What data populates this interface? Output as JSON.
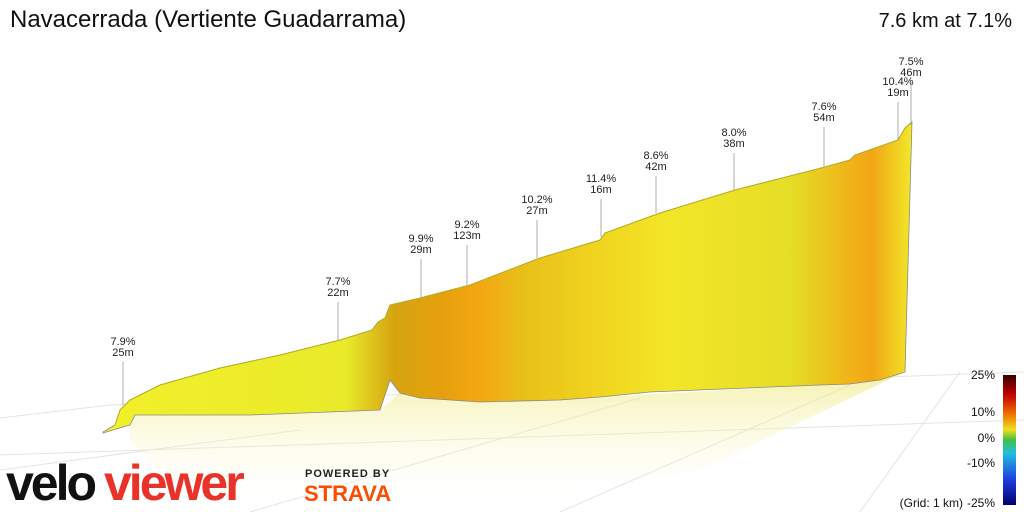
{
  "header": {
    "title": "Navacerrada (Vertiente Guadarrama)",
    "summary": "7.6 km at 7.1%"
  },
  "annotations": [
    {
      "grade": "7.9%",
      "length": "25m"
    },
    {
      "grade": "7.7%",
      "length": "22m"
    },
    {
      "grade": "9.9%",
      "length": "29m"
    },
    {
      "grade": "9.2%",
      "length": "123m"
    },
    {
      "grade": "10.2%",
      "length": "27m"
    },
    {
      "grade": "11.4%",
      "length": "16m"
    },
    {
      "grade": "8.6%",
      "length": "42m"
    },
    {
      "grade": "8.0%",
      "length": "38m"
    },
    {
      "grade": "7.6%",
      "length": "54m"
    },
    {
      "grade": "10.4%",
      "length": "19m"
    },
    {
      "grade": "7.5%",
      "length": "46m"
    }
  ],
  "legend": {
    "labels": [
      "25%",
      "10%",
      "0%",
      "-10%",
      "-25%"
    ],
    "grid_note": "(Grid: 1 km)"
  },
  "branding": {
    "logo_part1": "velo",
    "logo_part2": "viewer",
    "powered_by": "POWERED BY",
    "partner": "STRAVA"
  }
}
